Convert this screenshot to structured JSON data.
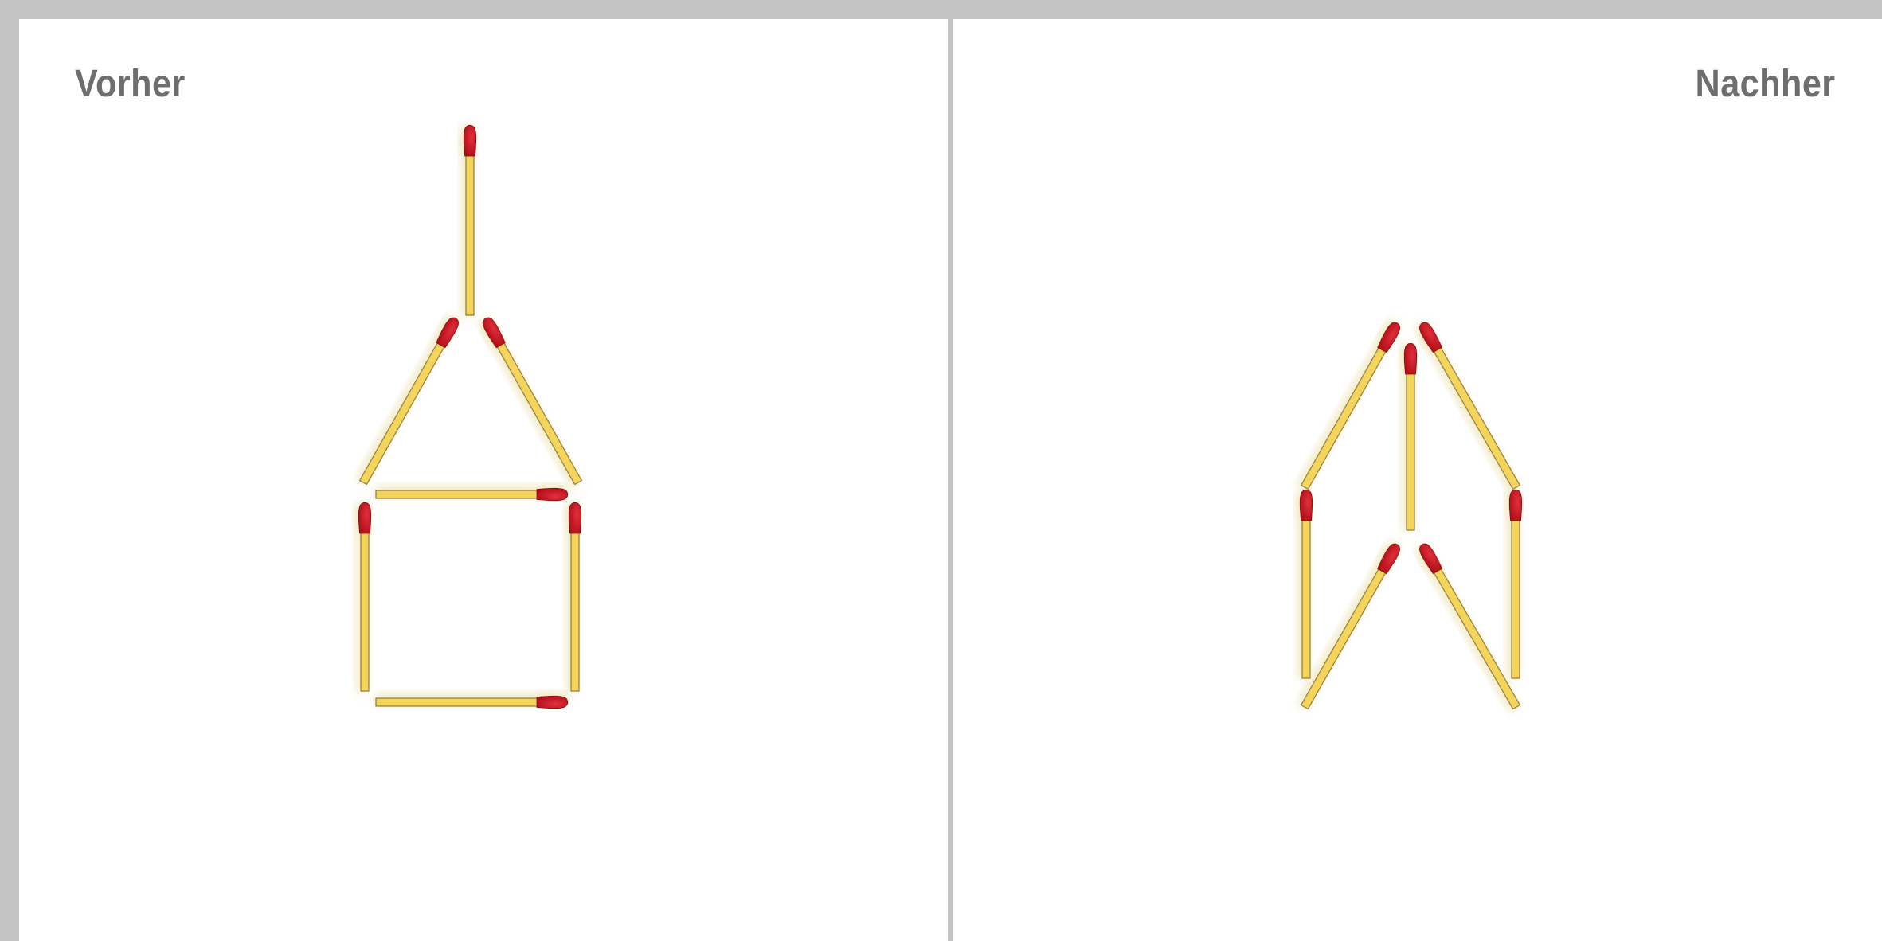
{
  "panels": {
    "before": {
      "label": "Vorher"
    },
    "after": {
      "label": "Nachher"
    }
  },
  "colors": {
    "stick": "#f5d45c",
    "stick_edge": "#8a7a3a",
    "head": "#c50f1d",
    "head_edge": "#7a0a12",
    "label": "#6e6e6e",
    "border": "#c4c4c4",
    "panel_bg": "#ffffff"
  }
}
